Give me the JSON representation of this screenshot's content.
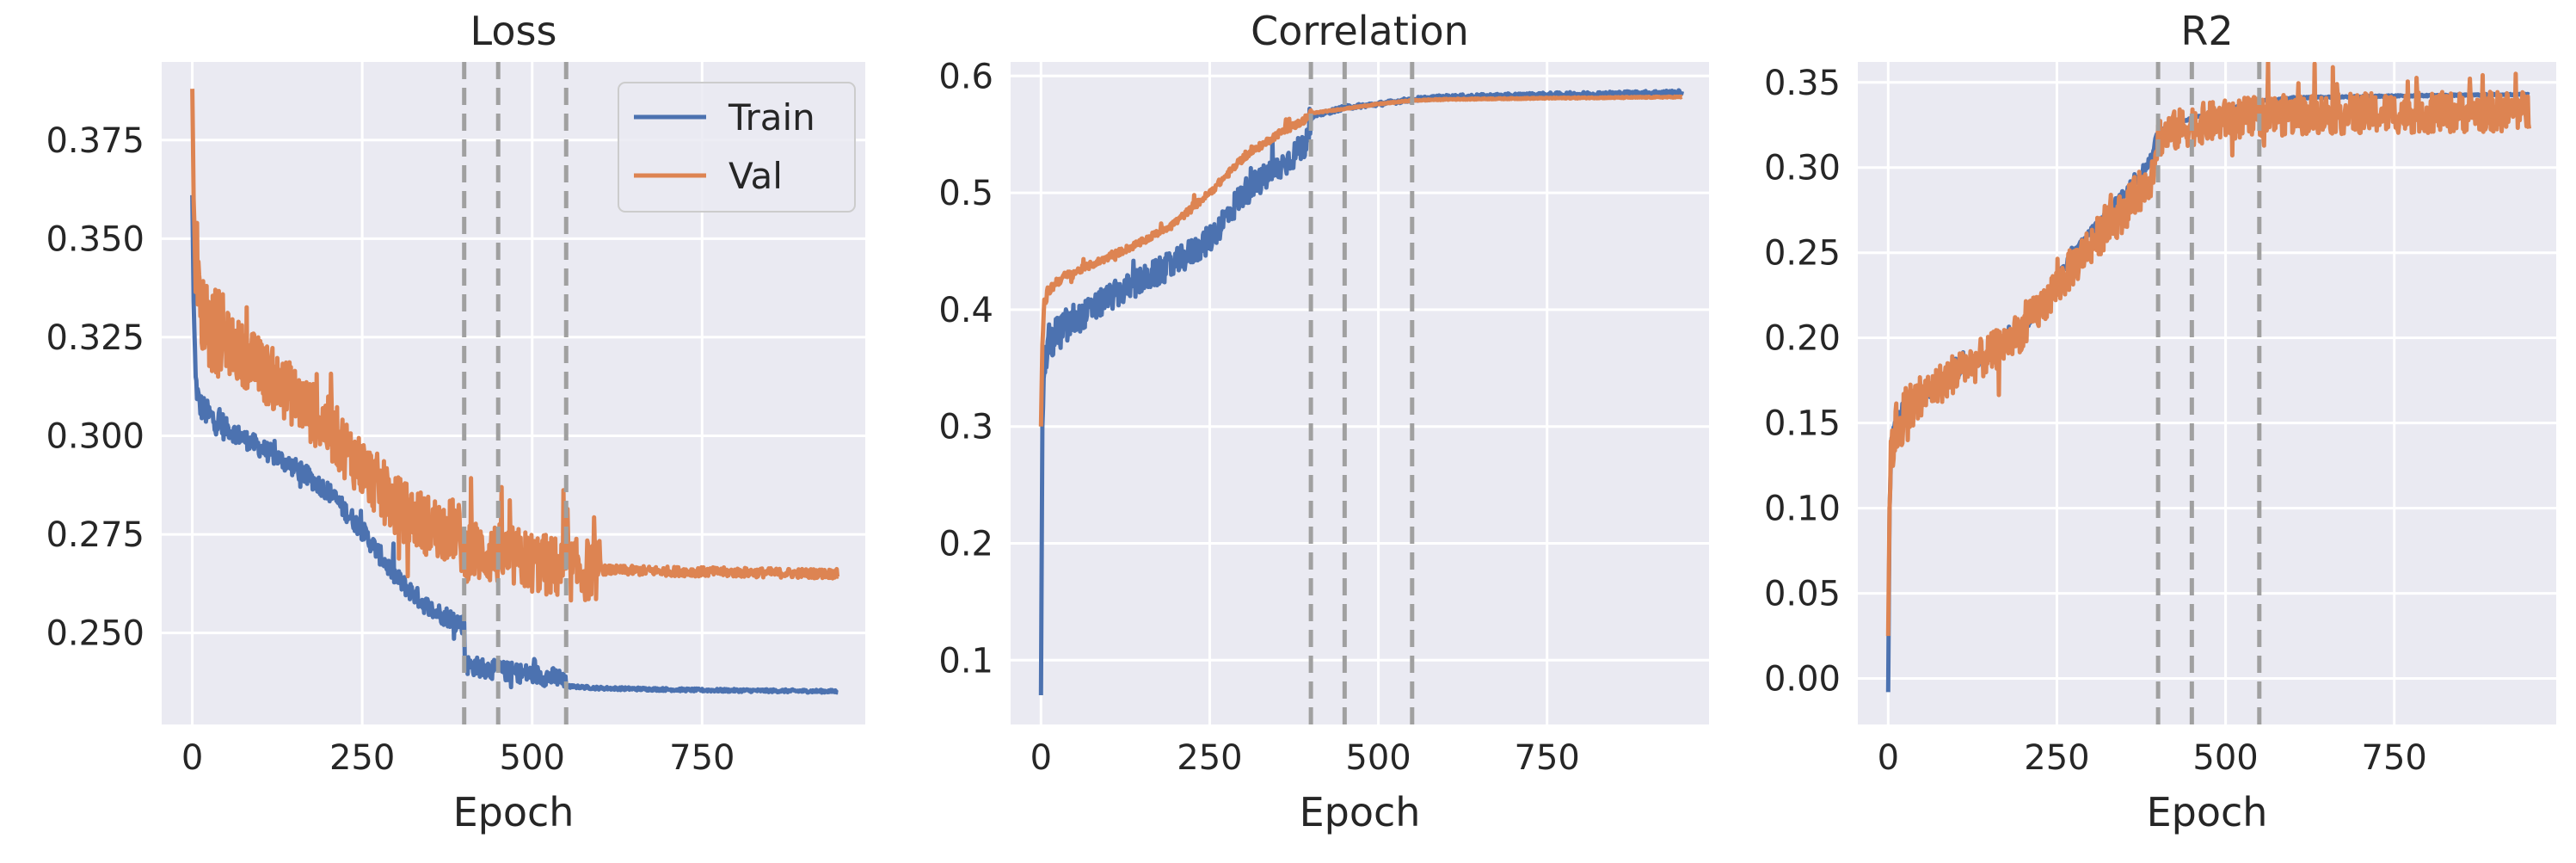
{
  "figure": {
    "background": "#ffffff",
    "panel_background": "#eaeaf2",
    "grid_color": "#ffffff",
    "marker_line_color": "#a0a0a0",
    "series_colors": {
      "Train": "#4c72b0",
      "Val": "#dd8452"
    }
  },
  "chart_data": [
    {
      "type": "line",
      "title": "Loss",
      "xlabel": "Epoch",
      "ylabel": "",
      "xlim": [
        -45,
        990
      ],
      "ylim": [
        0.2268,
        0.3948
      ],
      "xticks": [
        0,
        250,
        500,
        750
      ],
      "xtick_labels": [
        "0",
        "250",
        "500",
        "750"
      ],
      "yticks": [
        0.25,
        0.275,
        0.3,
        0.325,
        0.35,
        0.375
      ],
      "ytick_labels": [
        "0.250",
        "0.275",
        "0.300",
        "0.325",
        "0.350",
        "0.375"
      ],
      "grid": true,
      "legend": {
        "placement": "top-right",
        "entries": [
          "Train",
          "Val"
        ]
      },
      "vlines": [
        400,
        450,
        550
      ],
      "series": [
        {
          "name": "Train",
          "color": "#4c72b0",
          "noise": 0.0025,
          "noise_until": 550,
          "x": [
            0,
            2,
            5,
            10,
            25,
            50,
            100,
            150,
            200,
            250,
            300,
            350,
            390,
            400,
            401,
            450,
            500,
            540,
            550,
            600,
            750,
            950
          ],
          "values": [
            0.361,
            0.334,
            0.314,
            0.308,
            0.305,
            0.302,
            0.297,
            0.292,
            0.286,
            0.276,
            0.264,
            0.256,
            0.253,
            0.252,
            0.242,
            0.2405,
            0.2395,
            0.2385,
            0.2365,
            0.236,
            0.2355,
            0.2352
          ]
        },
        {
          "name": "Val",
          "color": "#dd8452",
          "noise": 0.008,
          "noise_until": 600,
          "x": [
            0,
            2,
            5,
            10,
            25,
            50,
            100,
            150,
            200,
            250,
            300,
            350,
            390,
            400,
            450,
            500,
            550,
            600,
            750,
            950
          ],
          "values": [
            0.388,
            0.36,
            0.343,
            0.334,
            0.328,
            0.324,
            0.317,
            0.31,
            0.302,
            0.292,
            0.282,
            0.277,
            0.276,
            0.271,
            0.27,
            0.268,
            0.266,
            0.266,
            0.2655,
            0.265
          ]
        }
      ]
    },
    {
      "type": "line",
      "title": "Correlation",
      "xlabel": "Epoch",
      "ylabel": "",
      "xlim": [
        -45,
        990
      ],
      "ylim": [
        0.045,
        0.612
      ],
      "xticks": [
        0,
        250,
        500,
        750
      ],
      "xtick_labels": [
        "0",
        "250",
        "500",
        "750"
      ],
      "yticks": [
        0.1,
        0.2,
        0.3,
        0.4,
        0.5,
        0.6
      ],
      "ytick_labels": [
        "0.1",
        "0.2",
        "0.3",
        "0.4",
        "0.5",
        "0.6"
      ],
      "grid": true,
      "legend": null,
      "vlines": [
        400,
        450,
        550
      ],
      "series": [
        {
          "name": "Train",
          "color": "#4c72b0",
          "noise": 0.012,
          "noise_until": 400,
          "x": [
            0,
            2,
            5,
            10,
            25,
            50,
            100,
            150,
            200,
            250,
            300,
            350,
            390,
            400,
            450,
            500,
            550,
            600,
            750,
            950
          ],
          "values": [
            0.07,
            0.3,
            0.35,
            0.37,
            0.38,
            0.39,
            0.41,
            0.425,
            0.44,
            0.46,
            0.5,
            0.52,
            0.54,
            0.565,
            0.573,
            0.576,
            0.58,
            0.582,
            0.584,
            0.586
          ]
        },
        {
          "name": "Val",
          "color": "#dd8452",
          "noise": 0.003,
          "noise_until": 400,
          "x": [
            0,
            2,
            5,
            10,
            25,
            50,
            100,
            150,
            200,
            250,
            300,
            350,
            390,
            400,
            450,
            500,
            550,
            600,
            750,
            950
          ],
          "values": [
            0.3,
            0.37,
            0.405,
            0.415,
            0.425,
            0.432,
            0.445,
            0.458,
            0.475,
            0.5,
            0.53,
            0.55,
            0.562,
            0.568,
            0.572,
            0.576,
            0.579,
            0.58,
            0.581,
            0.582
          ]
        }
      ]
    },
    {
      "type": "line",
      "title": "R2",
      "xlabel": "Epoch",
      "ylabel": "",
      "xlim": [
        -45,
        990
      ],
      "ylim": [
        -0.027,
        0.362
      ],
      "xticks": [
        0,
        250,
        500,
        750
      ],
      "xtick_labels": [
        "0",
        "250",
        "500",
        "750"
      ],
      "yticks": [
        0.0,
        0.05,
        0.1,
        0.15,
        0.2,
        0.25,
        0.3,
        0.35
      ],
      "ytick_labels": [
        "0.00",
        "0.05",
        "0.10",
        "0.15",
        "0.20",
        "0.25",
        "0.30",
        "0.35"
      ],
      "grid": true,
      "legend": null,
      "vlines": [
        400,
        450,
        550
      ],
      "series": [
        {
          "name": "Train",
          "color": "#4c72b0",
          "noise": 0.003,
          "noise_until": 400,
          "x": [
            0,
            2,
            5,
            10,
            25,
            50,
            100,
            150,
            200,
            250,
            300,
            350,
            390,
            400,
            450,
            500,
            550,
            600,
            750,
            950
          ],
          "values": [
            -0.008,
            0.1,
            0.14,
            0.15,
            0.16,
            0.168,
            0.18,
            0.19,
            0.205,
            0.235,
            0.262,
            0.285,
            0.305,
            0.322,
            0.329,
            0.334,
            0.339,
            0.341,
            0.342,
            0.343
          ]
        },
        {
          "name": "Val",
          "color": "#dd8452",
          "noise": 0.012,
          "noise_until": 950,
          "x": [
            0,
            2,
            5,
            10,
            25,
            50,
            100,
            150,
            200,
            250,
            300,
            350,
            390,
            400,
            450,
            500,
            550,
            600,
            750,
            950
          ],
          "values": [
            0.025,
            0.1,
            0.135,
            0.145,
            0.155,
            0.165,
            0.18,
            0.19,
            0.205,
            0.23,
            0.255,
            0.275,
            0.295,
            0.318,
            0.325,
            0.328,
            0.33,
            0.331,
            0.332,
            0.333
          ]
        }
      ]
    }
  ]
}
